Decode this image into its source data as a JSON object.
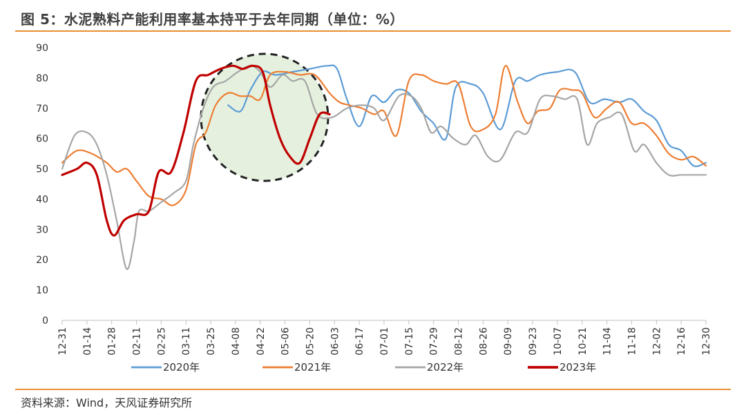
{
  "title": "图 5：水泥熟料产能利用率基本持平于去年同期（单位：%）",
  "source": "资料来源：Wind，天风证券研究所",
  "chart_data": {
    "type": "line",
    "ylim": [
      0,
      90
    ],
    "y_ticks": [
      0,
      10,
      20,
      30,
      40,
      50,
      60,
      70,
      80,
      90
    ],
    "categories": [
      "12-31",
      "01-14",
      "01-28",
      "02-11",
      "02-25",
      "03-11",
      "03-25",
      "04-08",
      "04-22",
      "05-06",
      "05-20",
      "06-03",
      "06-17",
      "07-01",
      "07-15",
      "07-29",
      "08-12",
      "08-26",
      "09-09",
      "09-23",
      "10-07",
      "10-21",
      "11-04",
      "11-18",
      "12-02",
      "12-16",
      "12-30"
    ],
    "annotation": "dashed circle highlighting 2023 vs prior years around 04-08 to 05-20",
    "legend_position": "bottom",
    "series": [
      {
        "name": "2020年",
        "color": "#5b9bd5",
        "width": 2.2,
        "points": [
          [
            6.7,
            71
          ],
          [
            7.2,
            69
          ],
          [
            7.6,
            76
          ],
          [
            8.1,
            82
          ],
          [
            8.6,
            81
          ],
          [
            9.3,
            82
          ],
          [
            10,
            83
          ],
          [
            10.7,
            84
          ],
          [
            11.1,
            83
          ],
          [
            11.5,
            73
          ],
          [
            12,
            64
          ],
          [
            12.5,
            74
          ],
          [
            13,
            72
          ],
          [
            13.5,
            76
          ],
          [
            14,
            75
          ],
          [
            14.5,
            69
          ],
          [
            15,
            65
          ],
          [
            15.5,
            60
          ],
          [
            15.9,
            77
          ],
          [
            16.5,
            78
          ],
          [
            17,
            75
          ],
          [
            17.7,
            63
          ],
          [
            18.3,
            79
          ],
          [
            18.8,
            79
          ],
          [
            19.3,
            81
          ],
          [
            20,
            82
          ],
          [
            20.7,
            82
          ],
          [
            21.3,
            72
          ],
          [
            21.9,
            73
          ],
          [
            22.5,
            72
          ],
          [
            23,
            73
          ],
          [
            23.5,
            69
          ],
          [
            24,
            66
          ],
          [
            24.5,
            58
          ],
          [
            25,
            56
          ],
          [
            25.5,
            51
          ],
          [
            26,
            52
          ]
        ]
      },
      {
        "name": "2021年",
        "color": "#ed7d31",
        "width": 2.2,
        "points": [
          [
            0,
            52
          ],
          [
            0.6,
            56
          ],
          [
            1.2,
            55
          ],
          [
            1.8,
            52
          ],
          [
            2.2,
            49
          ],
          [
            2.6,
            50
          ],
          [
            3,
            46
          ],
          [
            3.5,
            41
          ],
          [
            4,
            40
          ],
          [
            4.5,
            38
          ],
          [
            5,
            43
          ],
          [
            5.4,
            58
          ],
          [
            5.8,
            62
          ],
          [
            6.2,
            71
          ],
          [
            6.7,
            75
          ],
          [
            7.2,
            74
          ],
          [
            7.6,
            74
          ],
          [
            8,
            73
          ],
          [
            8.4,
            81
          ],
          [
            9,
            82
          ],
          [
            9.6,
            81
          ],
          [
            10.2,
            81
          ],
          [
            10.8,
            75
          ],
          [
            11.2,
            72
          ],
          [
            11.6,
            71
          ],
          [
            12.1,
            70
          ],
          [
            12.6,
            68
          ],
          [
            13,
            69
          ],
          [
            13.5,
            61
          ],
          [
            14,
            79
          ],
          [
            14.5,
            81
          ],
          [
            15,
            79
          ],
          [
            15.5,
            78
          ],
          [
            16,
            78
          ],
          [
            16.5,
            64
          ],
          [
            17,
            63
          ],
          [
            17.5,
            68
          ],
          [
            17.9,
            84
          ],
          [
            18.4,
            72
          ],
          [
            18.8,
            65
          ],
          [
            19.2,
            69
          ],
          [
            19.7,
            70
          ],
          [
            20.1,
            76
          ],
          [
            20.6,
            76
          ],
          [
            21,
            75
          ],
          [
            21.5,
            67
          ],
          [
            22,
            70
          ],
          [
            22.5,
            72
          ],
          [
            23,
            65
          ],
          [
            23.5,
            65
          ],
          [
            24,
            61
          ],
          [
            24.5,
            55
          ],
          [
            25,
            53
          ],
          [
            25.5,
            54
          ],
          [
            26,
            51
          ]
        ]
      },
      {
        "name": "2022年",
        "color": "#a5a5a5",
        "width": 2.2,
        "points": [
          [
            0,
            50
          ],
          [
            0.5,
            61
          ],
          [
            1,
            62
          ],
          [
            1.4,
            58
          ],
          [
            1.8,
            48
          ],
          [
            2.2,
            33
          ],
          [
            2.6,
            17
          ],
          [
            2.9,
            26
          ],
          [
            3.1,
            36
          ],
          [
            3.5,
            36
          ],
          [
            4,
            39
          ],
          [
            4.5,
            42
          ],
          [
            5,
            46
          ],
          [
            5.3,
            58
          ],
          [
            5.7,
            70
          ],
          [
            6.1,
            77
          ],
          [
            6.6,
            79
          ],
          [
            7.1,
            82
          ],
          [
            7.6,
            84
          ],
          [
            8,
            82
          ],
          [
            8.4,
            77
          ],
          [
            8.9,
            81
          ],
          [
            9.3,
            79
          ],
          [
            9.8,
            79
          ],
          [
            10.3,
            68
          ],
          [
            10.9,
            67
          ],
          [
            11.5,
            70
          ],
          [
            12.1,
            71
          ],
          [
            12.6,
            70
          ],
          [
            13,
            66
          ],
          [
            13.6,
            74
          ],
          [
            14.1,
            74
          ],
          [
            14.5,
            70
          ],
          [
            14.9,
            62
          ],
          [
            15.3,
            64
          ],
          [
            15.8,
            60
          ],
          [
            16.3,
            58
          ],
          [
            16.7,
            61
          ],
          [
            17.2,
            54
          ],
          [
            17.7,
            53
          ],
          [
            18.3,
            62
          ],
          [
            18.8,
            62
          ],
          [
            19.3,
            73
          ],
          [
            19.8,
            74
          ],
          [
            20.3,
            73
          ],
          [
            20.8,
            73
          ],
          [
            21.2,
            58
          ],
          [
            21.6,
            65
          ],
          [
            22.1,
            67
          ],
          [
            22.6,
            68
          ],
          [
            23.1,
            56
          ],
          [
            23.5,
            58
          ],
          [
            24,
            52
          ],
          [
            24.5,
            48
          ],
          [
            25,
            48
          ],
          [
            25.5,
            48
          ],
          [
            26,
            48
          ]
        ]
      },
      {
        "name": "2023年",
        "color": "#c00000",
        "width": 3.2,
        "points": [
          [
            0,
            48
          ],
          [
            0.6,
            50
          ],
          [
            1,
            52
          ],
          [
            1.4,
            48
          ],
          [
            1.8,
            33
          ],
          [
            2.1,
            28
          ],
          [
            2.5,
            33
          ],
          [
            3,
            35
          ],
          [
            3.5,
            36
          ],
          [
            3.9,
            49
          ],
          [
            4.4,
            49
          ],
          [
            4.9,
            62
          ],
          [
            5.4,
            79
          ],
          [
            5.9,
            81
          ],
          [
            6.4,
            83
          ],
          [
            6.9,
            84
          ],
          [
            7.3,
            83
          ],
          [
            7.7,
            84
          ],
          [
            8.1,
            82
          ],
          [
            8.4,
            71
          ],
          [
            8.8,
            60
          ],
          [
            9.2,
            54
          ],
          [
            9.6,
            52
          ],
          [
            10,
            60
          ],
          [
            10.4,
            68
          ],
          [
            10.8,
            68
          ]
        ]
      }
    ]
  }
}
